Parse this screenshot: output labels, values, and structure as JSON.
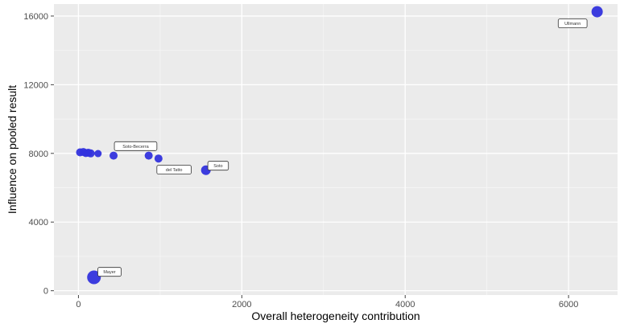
{
  "chart_data": {
    "type": "scatter",
    "xlabel": "Overall heterogeneity contribution",
    "ylabel": "Influence on pooled result",
    "xlim": [
      -300,
      6600
    ],
    "ylim": [
      -250,
      16700
    ],
    "x_ticks": [
      0,
      2000,
      4000,
      6000
    ],
    "y_ticks": [
      0,
      4000,
      8000,
      12000,
      16000
    ],
    "x_tick_labels": [
      "0",
      "2000",
      "4000",
      "6000"
    ],
    "y_tick_labels": [
      "0",
      "4000",
      "8000",
      "12000",
      "16000"
    ],
    "grid": true,
    "legend": "none",
    "point_color": "#3333dd",
    "panel_color": "#ebebeb",
    "points": [
      {
        "x": 20,
        "y": 8060,
        "size": 5
      },
      {
        "x": 60,
        "y": 8080,
        "size": 5
      },
      {
        "x": 90,
        "y": 8020,
        "size": 5
      },
      {
        "x": 120,
        "y": 8040,
        "size": 5
      },
      {
        "x": 150,
        "y": 8000,
        "size": 5
      },
      {
        "x": 240,
        "y": 7990,
        "size": 4.5
      },
      {
        "x": 430,
        "y": 7870,
        "size": 5
      },
      {
        "x": 860,
        "y": 7870,
        "size": 5
      },
      {
        "x": 980,
        "y": 7700,
        "size": 5
      },
      {
        "x": 1560,
        "y": 7020,
        "size": 6
      },
      {
        "x": 190,
        "y": 780,
        "size": 8.5
      },
      {
        "x": 6350,
        "y": 16250,
        "size": 7
      }
    ],
    "annotations": [
      {
        "label": "Soto-Becerra",
        "x": 700,
        "y": 8420
      },
      {
        "label": "Soto",
        "x": 1710,
        "y": 7280
      },
      {
        "label": "Ullmann",
        "x": 6050,
        "y": 15570
      },
      {
        "label": "Mayer",
        "x": 380,
        "y": 1100
      }
    ],
    "annotation_obscured": {
      "label": "del Tatto",
      "x": 1170,
      "y": 7050
    }
  }
}
